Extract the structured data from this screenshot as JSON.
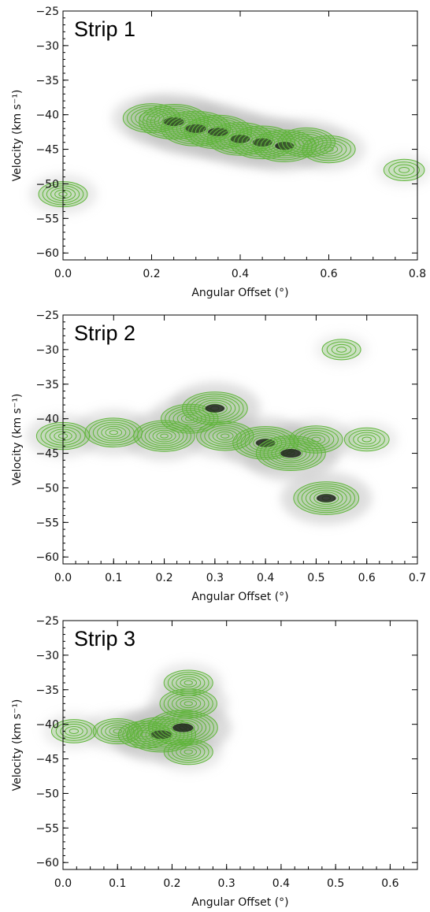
{
  "chart_data": [
    {
      "type": "heatmap",
      "title": "Strip 1",
      "xlabel": "Angular Offset (°)",
      "ylabel": "Velocity (km s⁻¹)",
      "xlim": [
        0.0,
        0.8
      ],
      "ylim": [
        -61,
        -25
      ],
      "xticks": [
        0.0,
        0.2,
        0.4,
        0.6,
        0.8
      ],
      "xtick_labels": [
        "0.0",
        "0.2",
        "0.4",
        "0.6",
        "0.8"
      ],
      "yticks": [
        -25,
        -30,
        -35,
        -40,
        -45,
        -50,
        -55,
        -60
      ],
      "ytick_labels": [
        "−25",
        "−30",
        "−35",
        "−40",
        "−45",
        "−50",
        "−55",
        "−60"
      ],
      "contour_color": "#5fb53a",
      "emission_ridge": [
        {
          "x": 0.0,
          "y": -51.5,
          "level": 0.5
        },
        {
          "x": 0.2,
          "y": -40.5,
          "level": 0.7
        },
        {
          "x": 0.25,
          "y": -41.0,
          "level": 1.0
        },
        {
          "x": 0.3,
          "y": -42.0,
          "level": 1.0
        },
        {
          "x": 0.35,
          "y": -42.5,
          "level": 0.95
        },
        {
          "x": 0.4,
          "y": -43.5,
          "level": 0.9
        },
        {
          "x": 0.45,
          "y": -44.0,
          "level": 0.9
        },
        {
          "x": 0.5,
          "y": -44.5,
          "level": 0.85
        },
        {
          "x": 0.55,
          "y": -44.0,
          "level": 0.7
        },
        {
          "x": 0.6,
          "y": -45.0,
          "level": 0.6
        },
        {
          "x": 0.77,
          "y": -48.0,
          "level": 0.3
        }
      ]
    },
    {
      "type": "heatmap",
      "title": "Strip 2",
      "xlabel": "Angular Offset (°)",
      "ylabel": "Velocity (km s⁻¹)",
      "xlim": [
        0.0,
        0.7
      ],
      "ylim": [
        -61,
        -25
      ],
      "xticks": [
        0.0,
        0.1,
        0.2,
        0.3,
        0.4,
        0.5,
        0.6,
        0.7
      ],
      "xtick_labels": [
        "0.0",
        "0.1",
        "0.2",
        "0.3",
        "0.4",
        "0.5",
        "0.6",
        "0.7"
      ],
      "yticks": [
        -25,
        -30,
        -35,
        -40,
        -45,
        -50,
        -55,
        -60
      ],
      "ytick_labels": [
        "−25",
        "−30",
        "−35",
        "−40",
        "−45",
        "−50",
        "−55",
        "−60"
      ],
      "contour_color": "#5fb53a",
      "emission_ridge": [
        {
          "x": 0.0,
          "y": -42.5,
          "level": 0.6
        },
        {
          "x": 0.1,
          "y": -42.0,
          "level": 0.7
        },
        {
          "x": 0.2,
          "y": -42.5,
          "level": 0.8
        },
        {
          "x": 0.25,
          "y": -40.0,
          "level": 0.7
        },
        {
          "x": 0.3,
          "y": -38.5,
          "level": 0.9
        },
        {
          "x": 0.32,
          "y": -42.5,
          "level": 0.7
        },
        {
          "x": 0.4,
          "y": -43.5,
          "level": 0.9
        },
        {
          "x": 0.45,
          "y": -45.0,
          "level": 1.0
        },
        {
          "x": 0.5,
          "y": -43.0,
          "level": 0.6
        },
        {
          "x": 0.52,
          "y": -51.5,
          "level": 0.9
        },
        {
          "x": 0.6,
          "y": -43.0,
          "level": 0.4
        },
        {
          "x": 0.55,
          "y": -30.0,
          "level": 0.25
        }
      ]
    },
    {
      "type": "heatmap",
      "title": "Strip 3",
      "xlabel": "Angular Offset (°)",
      "ylabel": "Velocity (km s⁻¹)",
      "xlim": [
        0.0,
        0.65
      ],
      "ylim": [
        -61,
        -25
      ],
      "xticks": [
        0.0,
        0.1,
        0.2,
        0.3,
        0.4,
        0.5,
        0.6
      ],
      "xtick_labels": [
        "0.0",
        "0.1",
        "0.2",
        "0.3",
        "0.4",
        "0.5",
        "0.6"
      ],
      "yticks": [
        -25,
        -30,
        -35,
        -40,
        -45,
        -50,
        -55,
        -60
      ],
      "ytick_labels": [
        "−25",
        "−30",
        "−35",
        "−40",
        "−45",
        "−50",
        "−55",
        "−60"
      ],
      "contour_color": "#5fb53a",
      "emission_ridge": [
        {
          "x": 0.02,
          "y": -41.0,
          "level": 0.4
        },
        {
          "x": 0.1,
          "y": -41.0,
          "level": 0.5
        },
        {
          "x": 0.15,
          "y": -41.5,
          "level": 0.6
        },
        {
          "x": 0.18,
          "y": -41.5,
          "level": 1.0
        },
        {
          "x": 0.22,
          "y": -40.5,
          "level": 1.0
        },
        {
          "x": 0.23,
          "y": -37.0,
          "level": 0.7
        },
        {
          "x": 0.23,
          "y": -34.0,
          "level": 0.5
        },
        {
          "x": 0.23,
          "y": -44.0,
          "level": 0.5
        }
      ]
    }
  ]
}
